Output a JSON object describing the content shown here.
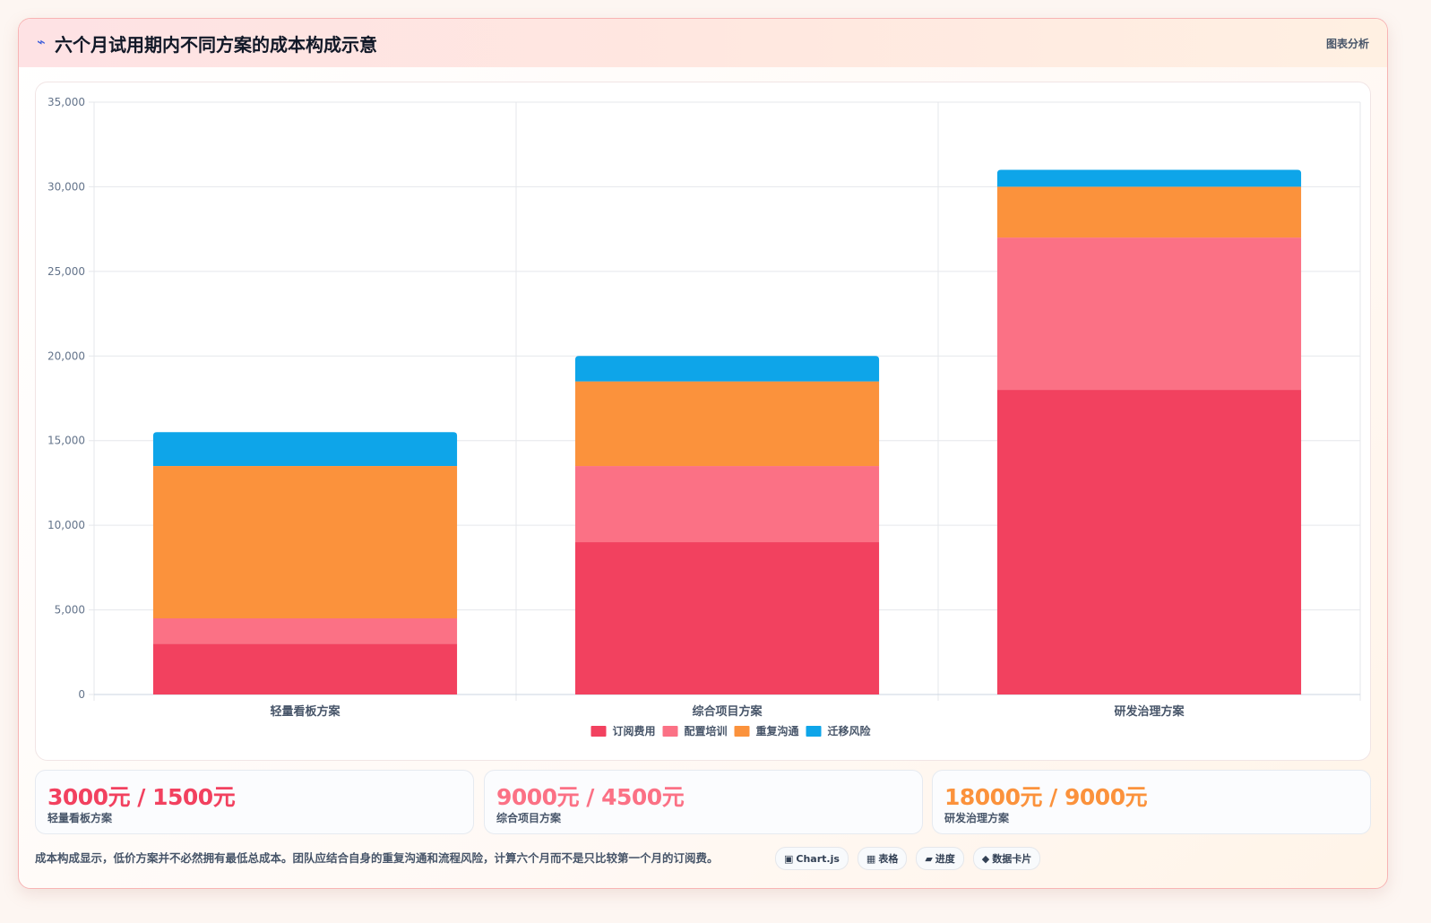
{
  "header": {
    "icon": "chart-icon",
    "icon_glyph": "⌁",
    "title": "六个月试用期内不同方案的成本构成示意",
    "tag": "图表分析"
  },
  "chart_data": {
    "type": "bar",
    "stacked": true,
    "categories": [
      "轻量看板方案",
      "综合项目方案",
      "研发治理方案"
    ],
    "series": [
      {
        "name": "订阅费用",
        "color": "#f2415f",
        "values": [
          3000,
          9000,
          18000
        ]
      },
      {
        "name": "配置培训",
        "color": "#fb7185",
        "values": [
          1500,
          4500,
          9000
        ]
      },
      {
        "name": "重复沟通",
        "color": "#fb923c",
        "values": [
          9000,
          5000,
          3000
        ]
      },
      {
        "name": "迁移风险",
        "color": "#0ea5e9",
        "values": [
          2000,
          1500,
          1000
        ]
      }
    ],
    "ylim": [
      0,
      35000
    ],
    "yticks": [
      0,
      5000,
      10000,
      15000,
      20000,
      25000,
      30000,
      35000
    ],
    "ytick_labels": [
      "0",
      "5,000",
      "10,000",
      "15,000",
      "20,000",
      "25,000",
      "30,000",
      "35,000"
    ],
    "xlabel": "",
    "ylabel": "",
    "grid": true,
    "legend": "bottom-center"
  },
  "stats": [
    {
      "value": "3000元 / 1500元",
      "label": "轻量看板方案",
      "color": "#f2415f"
    },
    {
      "value": "9000元 / 4500元",
      "label": "综合项目方案",
      "color": "#fb7185"
    },
    {
      "value": "18000元 / 9000元",
      "label": "研发治理方案",
      "color": "#fb923c"
    }
  ],
  "footer": {
    "text": "成本构成显示，低价方案并不必然拥有最低总成本。团队应结合自身的重复沟通和流程风险，计算六个月而不是只比较第一个月的订阅费。",
    "chips": [
      {
        "icon": "▣",
        "label": "Chart.js"
      },
      {
        "icon": "▦",
        "label": "表格"
      },
      {
        "icon": "▰",
        "label": "进度"
      },
      {
        "icon": "◆",
        "label": "数据卡片"
      }
    ]
  }
}
